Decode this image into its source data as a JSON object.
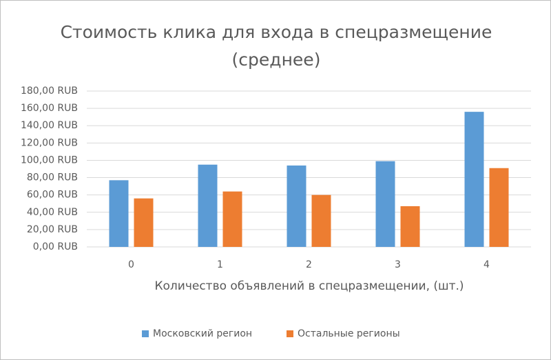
{
  "chart_data": {
    "type": "bar",
    "title": "Стоимость клика для входа в спецразмещение (среднее)",
    "x_label": "Количество объявлений в спецразмещении, (шт.)",
    "categories": [
      "0",
      "1",
      "2",
      "3",
      "4"
    ],
    "series": [
      {
        "name": "Московский регион",
        "color": "#5b9bd5",
        "values": [
          77,
          95,
          94,
          99,
          156
        ]
      },
      {
        "name": "Остальные регионы",
        "color": "#ed7d31",
        "values": [
          56,
          64,
          60,
          47,
          91
        ]
      }
    ],
    "ylim": [
      0,
      180
    ],
    "yticks": [
      {
        "value": 0,
        "label": "0,00 RUB"
      },
      {
        "value": 20,
        "label": "20,00 RUB"
      },
      {
        "value": 40,
        "label": "40,00 RUB"
      },
      {
        "value": 60,
        "label": "60,00 RUB"
      },
      {
        "value": 80,
        "label": "80,00 RUB"
      },
      {
        "value": 100,
        "label": "100,00 RUB"
      },
      {
        "value": 120,
        "label": "120,00 RUB"
      },
      {
        "value": 140,
        "label": "140,00 RUB"
      },
      {
        "value": 160,
        "label": "160,00 RUB"
      },
      {
        "value": 180,
        "label": "180,00 RUB"
      }
    ],
    "grid": true,
    "legend": "bottom"
  }
}
